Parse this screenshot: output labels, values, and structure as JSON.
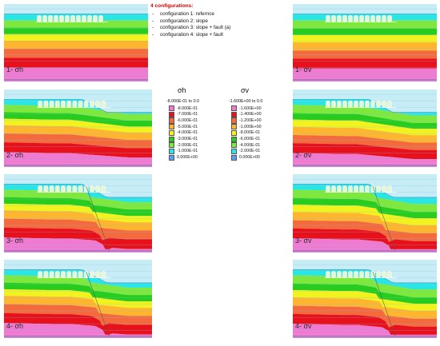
{
  "configurations": {
    "title": "4 configurations:",
    "items": [
      "configuration 1: refernce",
      "configuration 2: slope",
      "configuration 3: slope + fault (a)",
      "configuration 4: slope + fault"
    ]
  },
  "panels": [
    {
      "label": "1- σh",
      "config": 1,
      "stress": "h"
    },
    {
      "label": "1- σv",
      "config": 1,
      "stress": "v"
    },
    {
      "label": "2- σh",
      "config": 2,
      "stress": "h"
    },
    {
      "label": "2- σv",
      "config": 2,
      "stress": "v"
    },
    {
      "label": "3- σh",
      "config": 3,
      "stress": "h"
    },
    {
      "label": "3- σv",
      "config": 3,
      "stress": "v"
    },
    {
      "label": "4- σh",
      "config": 4,
      "stress": "h"
    },
    {
      "label": "4- σv",
      "config": 4,
      "stress": "v"
    }
  ],
  "legend_h": {
    "title": "σh",
    "range": "-8.000E-01 to  0.0",
    "entries": [
      "-8.000E-01",
      "-7.000E-01",
      "-6.000E-01",
      "-5.000E-01",
      "-4.000E-01",
      "-3.000E-01",
      "-2.000E-01",
      "-1.000E-01",
      "0.000E+00"
    ]
  },
  "legend_v": {
    "title": "σv",
    "range": "-1.600E+00 to  0.0",
    "entries": [
      "-1.600E+00",
      "-1.400E+00",
      "-1.200E+00",
      "-1.000E+00",
      "-8.000E-01",
      "-6.000E-01",
      "-4.000E-01",
      "-2.000E-01",
      "0.000E+00"
    ]
  },
  "colors": {
    "levels": [
      "#f07ad0",
      "#e8101a",
      "#f56a3c",
      "#ffb52e",
      "#f2f21e",
      "#27cc1e",
      "#7ee83c",
      "#29e6e6",
      "#5aa0f0"
    ],
    "sky": "#c6ecf5",
    "grid": "#7dc3e6"
  }
}
